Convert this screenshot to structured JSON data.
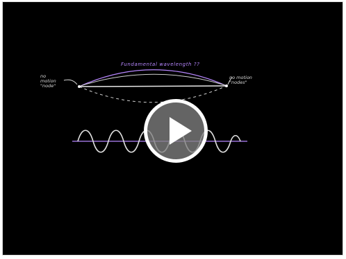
{
  "video": {
    "title_annotation": "Fundamental wavelength ??",
    "left_annotation": "no\nmotion\n\"node\"",
    "right_annotation": "no motion\n\"nodes\"",
    "controls": {
      "play_icon": "play-icon"
    },
    "colors": {
      "background": "#000000",
      "string": "#ffffff",
      "annotation": "#b787ff",
      "overlay": "#808080"
    }
  }
}
